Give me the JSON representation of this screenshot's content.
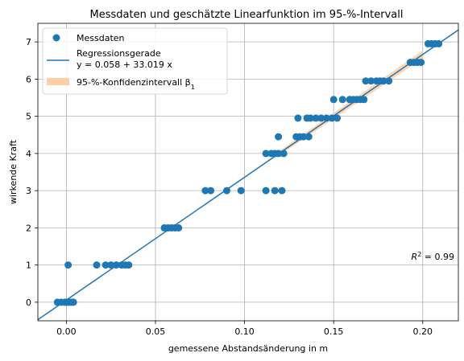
{
  "chart_data": {
    "type": "scatter",
    "title": "Messdaten und geschätzte Linearfunktion im 95-%-Intervall",
    "xlabel": "gemessene Abstandsänderung in m",
    "ylabel": "wirkende Kraft",
    "xlim": [
      -0.016,
      0.22
    ],
    "ylim": [
      -0.5,
      7.5
    ],
    "xticks": [
      0.0,
      0.05,
      0.1,
      0.15,
      0.2
    ],
    "xtick_labels": [
      "0.00",
      "0.05",
      "0.10",
      "0.15",
      "0.20"
    ],
    "yticks": [
      0,
      1,
      2,
      3,
      4,
      5,
      6,
      7
    ],
    "ytick_labels": [
      "0",
      "1",
      "2",
      "3",
      "4",
      "5",
      "6",
      "7"
    ],
    "grid": true,
    "legend_position": "top-left",
    "colors": {
      "points": "#1f77b4",
      "line": "#1f77b4",
      "band": "#ffd0a8"
    },
    "series": [
      {
        "name": "Messdaten",
        "kind": "scatter",
        "points": [
          [
            -0.005,
            0
          ],
          [
            -0.003,
            0
          ],
          [
            -0.001,
            0
          ],
          [
            0.0,
            0
          ],
          [
            0.001,
            0
          ],
          [
            0.002,
            0
          ],
          [
            0.003,
            0
          ],
          [
            0.004,
            0
          ],
          [
            0.001,
            1
          ],
          [
            0.017,
            1
          ],
          [
            0.022,
            1
          ],
          [
            0.025,
            1
          ],
          [
            0.028,
            1
          ],
          [
            0.031,
            1
          ],
          [
            0.033,
            1
          ],
          [
            0.035,
            1
          ],
          [
            0.055,
            2
          ],
          [
            0.057,
            2
          ],
          [
            0.059,
            2
          ],
          [
            0.061,
            2
          ],
          [
            0.063,
            2
          ],
          [
            0.078,
            3
          ],
          [
            0.081,
            3
          ],
          [
            0.09,
            3
          ],
          [
            0.098,
            3
          ],
          [
            0.112,
            3
          ],
          [
            0.117,
            3
          ],
          [
            0.121,
            3
          ],
          [
            0.112,
            4
          ],
          [
            0.115,
            4
          ],
          [
            0.117,
            4
          ],
          [
            0.119,
            4
          ],
          [
            0.122,
            4
          ],
          [
            0.119,
            4.45
          ],
          [
            0.129,
            4.45
          ],
          [
            0.131,
            4.45
          ],
          [
            0.133,
            4.45
          ],
          [
            0.136,
            4.45
          ],
          [
            0.13,
            4.95
          ],
          [
            0.135,
            4.95
          ],
          [
            0.137,
            4.95
          ],
          [
            0.14,
            4.95
          ],
          [
            0.143,
            4.95
          ],
          [
            0.146,
            4.95
          ],
          [
            0.149,
            4.95
          ],
          [
            0.152,
            4.95
          ],
          [
            0.15,
            5.45
          ],
          [
            0.155,
            5.45
          ],
          [
            0.159,
            5.45
          ],
          [
            0.161,
            5.45
          ],
          [
            0.163,
            5.45
          ],
          [
            0.165,
            5.45
          ],
          [
            0.167,
            5.45
          ],
          [
            0.168,
            5.95
          ],
          [
            0.171,
            5.95
          ],
          [
            0.174,
            5.95
          ],
          [
            0.176,
            5.95
          ],
          [
            0.178,
            5.95
          ],
          [
            0.181,
            5.95
          ],
          [
            0.193,
            6.45
          ],
          [
            0.195,
            6.45
          ],
          [
            0.197,
            6.45
          ],
          [
            0.199,
            6.45
          ],
          [
            0.203,
            6.95
          ],
          [
            0.205,
            6.95
          ],
          [
            0.207,
            6.95
          ],
          [
            0.209,
            6.95
          ]
        ]
      },
      {
        "name": "Regressionsgerade",
        "name_line2": "y = 0.058 + 33.019 x",
        "kind": "line",
        "intercept": 0.058,
        "slope": 33.019
      },
      {
        "name": "95-%-Konfidenzintervall β",
        "name_subscript": "1",
        "kind": "band",
        "slope_lower": 32.5,
        "slope_upper": 33.55,
        "x_range": [
          0.12,
          0.2
        ]
      }
    ],
    "annotation": {
      "text": "R",
      "superscript": "2",
      "suffix": " = 0.99",
      "x": 0.2,
      "y": 1.1
    }
  }
}
